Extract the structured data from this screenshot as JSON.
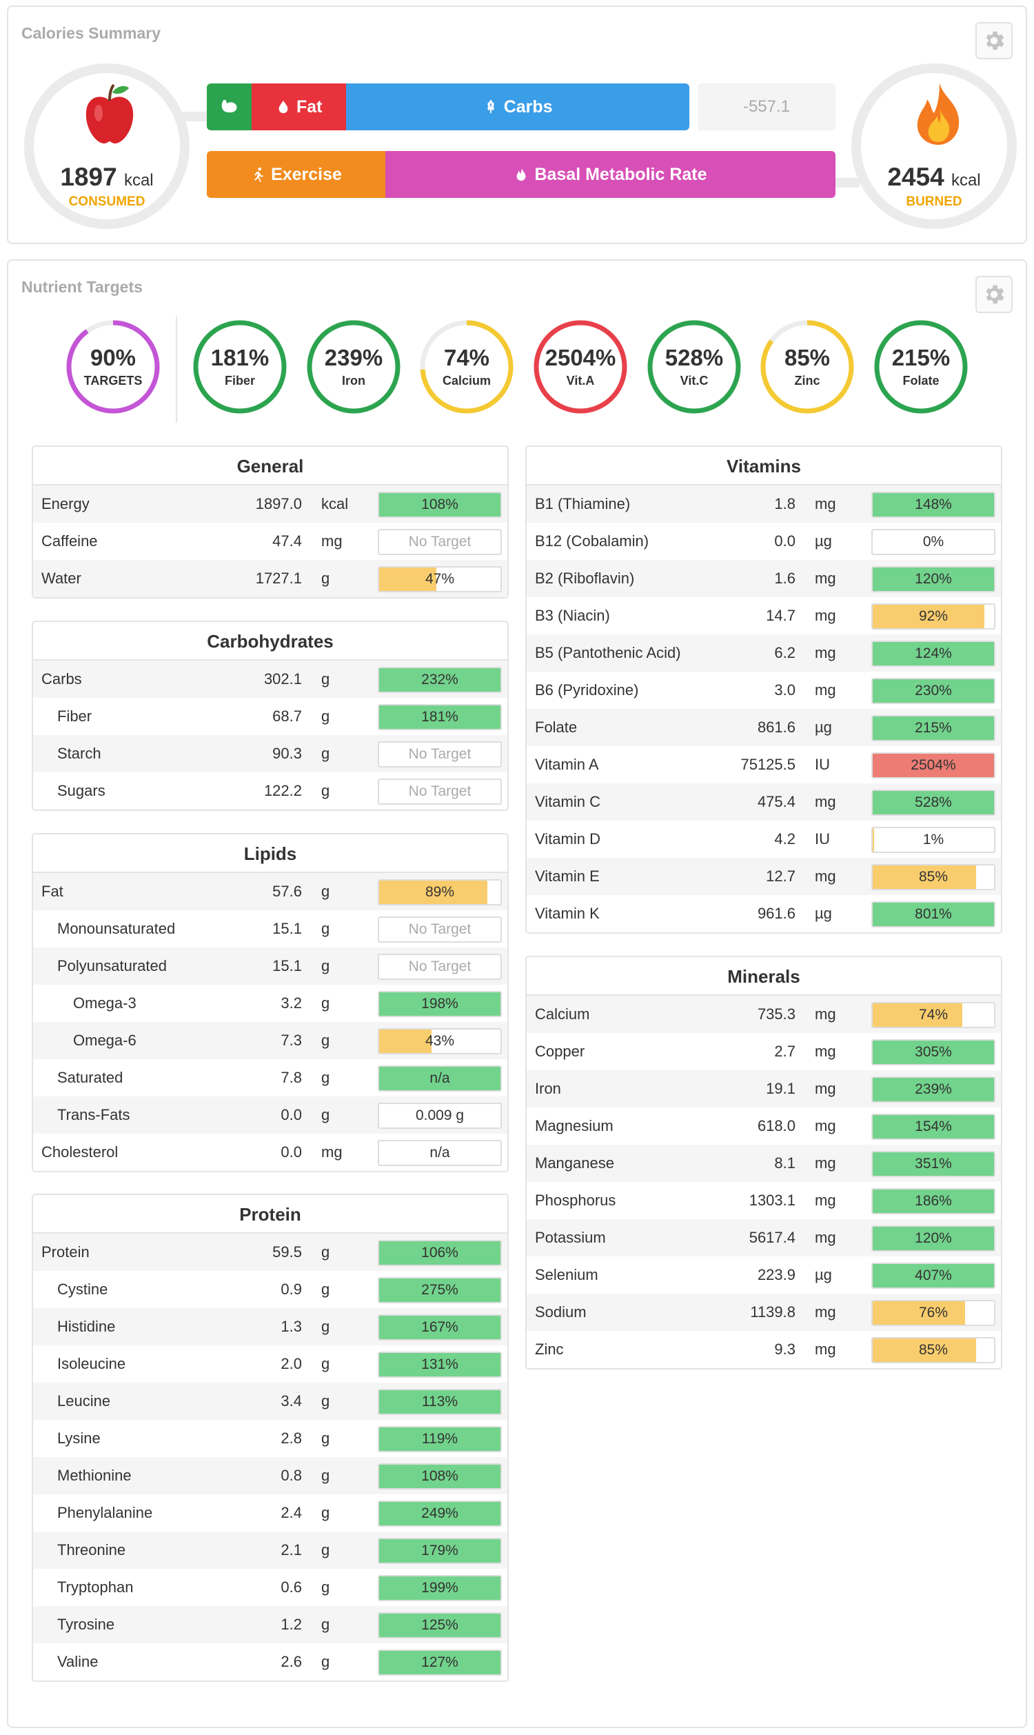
{
  "calories": {
    "title": "Calories Summary",
    "consumed_value": "1897",
    "consumed_unit": "kcal",
    "consumed_label": "CONSUMED",
    "burned_value": "2454",
    "burned_unit": "kcal",
    "burned_label": "BURNED",
    "net": "-557.1",
    "bar1": [
      {
        "label": "",
        "icon": "protein-flex-icon",
        "color": "#2ca44f",
        "pct": 0.093
      },
      {
        "label": "Fat",
        "icon": "droplet-icon",
        "color": "#e8323c",
        "pct": 0.196
      },
      {
        "label": "Carbs",
        "icon": "wheat-icon",
        "color": "#3a9de8",
        "pct": 0.711
      }
    ],
    "bar2": [
      {
        "label": "Exercise",
        "icon": "running-icon",
        "color": "#f28c1e",
        "pct": 0.284
      },
      {
        "label": "Basal Metabolic Rate",
        "icon": "flame-icon",
        "color": "#d84fb7",
        "pct": 0.716
      }
    ]
  },
  "targets": {
    "title": "Nutrient Targets",
    "rings": [
      {
        "value": "90%",
        "label": "TARGETS",
        "color": "#c355d6",
        "pct": 0.9
      },
      {
        "value": "181%",
        "label": "Fiber",
        "color": "#2ca44f",
        "pct": 1
      },
      {
        "value": "239%",
        "label": "Iron",
        "color": "#2ca44f",
        "pct": 1
      },
      {
        "value": "74%",
        "label": "Calcium",
        "color": "#f4c932",
        "pct": 0.74
      },
      {
        "value": "2504%",
        "label": "Vit.A",
        "color": "#e8404a",
        "pct": 1
      },
      {
        "value": "528%",
        "label": "Vit.C",
        "color": "#2ca44f",
        "pct": 1
      },
      {
        "value": "85%",
        "label": "Zinc",
        "color": "#f4c932",
        "pct": 0.85
      },
      {
        "value": "215%",
        "label": "Folate",
        "color": "#2ca44f",
        "pct": 1
      }
    ]
  },
  "colors": {
    "green": "#72d38c",
    "yellow": "#f9cd6d",
    "red": "#ec7c74"
  },
  "sections": {
    "general": {
      "title": "General",
      "rows": [
        {
          "name": "Energy",
          "value": "1897.0",
          "unit": "kcal",
          "text": "108%",
          "pct": 1,
          "color": "green"
        },
        {
          "name": "Caffeine",
          "value": "47.4",
          "unit": "mg",
          "text": "No Target",
          "pct": 0,
          "color": "none"
        },
        {
          "name": "Water",
          "value": "1727.1",
          "unit": "g",
          "text": "47%",
          "pct": 0.47,
          "color": "yellow"
        }
      ]
    },
    "carbohydrates": {
      "title": "Carbohydrates",
      "rows": [
        {
          "name": "Carbs",
          "value": "302.1",
          "unit": "g",
          "text": "232%",
          "pct": 1,
          "color": "green"
        },
        {
          "name": "Fiber",
          "value": "68.7",
          "unit": "g",
          "text": "181%",
          "pct": 1,
          "color": "green",
          "indent": 1
        },
        {
          "name": "Starch",
          "value": "90.3",
          "unit": "g",
          "text": "No Target",
          "pct": 0,
          "color": "none",
          "indent": 1
        },
        {
          "name": "Sugars",
          "value": "122.2",
          "unit": "g",
          "text": "No Target",
          "pct": 0,
          "color": "none",
          "indent": 1
        }
      ]
    },
    "lipids": {
      "title": "Lipids",
      "rows": [
        {
          "name": "Fat",
          "value": "57.6",
          "unit": "g",
          "text": "89%",
          "pct": 0.89,
          "color": "yellow"
        },
        {
          "name": "Monounsaturated",
          "value": "15.1",
          "unit": "g",
          "text": "No Target",
          "pct": 0,
          "color": "none",
          "indent": 1
        },
        {
          "name": "Polyunsaturated",
          "value": "15.1",
          "unit": "g",
          "text": "No Target",
          "pct": 0,
          "color": "none",
          "indent": 1
        },
        {
          "name": "Omega-3",
          "value": "3.2",
          "unit": "g",
          "text": "198%",
          "pct": 1,
          "color": "green",
          "indent": 2
        },
        {
          "name": "Omega-6",
          "value": "7.3",
          "unit": "g",
          "text": "43%",
          "pct": 0.43,
          "color": "yellow",
          "indent": 2
        },
        {
          "name": "Saturated",
          "value": "7.8",
          "unit": "g",
          "text": "n/a",
          "pct": 1,
          "color": "green",
          "indent": 1
        },
        {
          "name": "Trans-Fats",
          "value": "0.0",
          "unit": "g",
          "text": "0.009 g",
          "pct": 0,
          "color": "none",
          "indent": 1,
          "dark": true
        },
        {
          "name": "Cholesterol",
          "value": "0.0",
          "unit": "mg",
          "text": "n/a",
          "pct": 0,
          "color": "none",
          "dark": true
        }
      ]
    },
    "protein": {
      "title": "Protein",
      "rows": [
        {
          "name": "Protein",
          "value": "59.5",
          "unit": "g",
          "text": "106%",
          "pct": 1,
          "color": "green"
        },
        {
          "name": "Cystine",
          "value": "0.9",
          "unit": "g",
          "text": "275%",
          "pct": 1,
          "color": "green",
          "indent": 1
        },
        {
          "name": "Histidine",
          "value": "1.3",
          "unit": "g",
          "text": "167%",
          "pct": 1,
          "color": "green",
          "indent": 1
        },
        {
          "name": "Isoleucine",
          "value": "2.0",
          "unit": "g",
          "text": "131%",
          "pct": 1,
          "color": "green",
          "indent": 1
        },
        {
          "name": "Leucine",
          "value": "3.4",
          "unit": "g",
          "text": "113%",
          "pct": 1,
          "color": "green",
          "indent": 1
        },
        {
          "name": "Lysine",
          "value": "2.8",
          "unit": "g",
          "text": "119%",
          "pct": 1,
          "color": "green",
          "indent": 1
        },
        {
          "name": "Methionine",
          "value": "0.8",
          "unit": "g",
          "text": "108%",
          "pct": 1,
          "color": "green",
          "indent": 1
        },
        {
          "name": "Phenylalanine",
          "value": "2.4",
          "unit": "g",
          "text": "249%",
          "pct": 1,
          "color": "green",
          "indent": 1
        },
        {
          "name": "Threonine",
          "value": "2.1",
          "unit": "g",
          "text": "179%",
          "pct": 1,
          "color": "green",
          "indent": 1
        },
        {
          "name": "Tryptophan",
          "value": "0.6",
          "unit": "g",
          "text": "199%",
          "pct": 1,
          "color": "green",
          "indent": 1
        },
        {
          "name": "Tyrosine",
          "value": "1.2",
          "unit": "g",
          "text": "125%",
          "pct": 1,
          "color": "green",
          "indent": 1
        },
        {
          "name": "Valine",
          "value": "2.6",
          "unit": "g",
          "text": "127%",
          "pct": 1,
          "color": "green",
          "indent": 1
        }
      ]
    },
    "vitamins": {
      "title": "Vitamins",
      "rows": [
        {
          "name": "B1 (Thiamine)",
          "value": "1.8",
          "unit": "mg",
          "text": "148%",
          "pct": 1,
          "color": "green"
        },
        {
          "name": "B12 (Cobalamin)",
          "value": "0.0",
          "unit": "µg",
          "text": "0%",
          "pct": 0,
          "color": "none",
          "dark": true
        },
        {
          "name": "B2 (Riboflavin)",
          "value": "1.6",
          "unit": "mg",
          "text": "120%",
          "pct": 1,
          "color": "green"
        },
        {
          "name": "B3 (Niacin)",
          "value": "14.7",
          "unit": "mg",
          "text": "92%",
          "pct": 0.92,
          "color": "yellow"
        },
        {
          "name": "B5 (Pantothenic Acid)",
          "value": "6.2",
          "unit": "mg",
          "text": "124%",
          "pct": 1,
          "color": "green"
        },
        {
          "name": "B6 (Pyridoxine)",
          "value": "3.0",
          "unit": "mg",
          "text": "230%",
          "pct": 1,
          "color": "green"
        },
        {
          "name": "Folate",
          "value": "861.6",
          "unit": "µg",
          "text": "215%",
          "pct": 1,
          "color": "green"
        },
        {
          "name": "Vitamin A",
          "value": "75125.5",
          "unit": "IU",
          "text": "2504%",
          "pct": 1,
          "color": "red"
        },
        {
          "name": "Vitamin C",
          "value": "475.4",
          "unit": "mg",
          "text": "528%",
          "pct": 1,
          "color": "green"
        },
        {
          "name": "Vitamin D",
          "value": "4.2",
          "unit": "IU",
          "text": "1%",
          "pct": 0.01,
          "color": "yellow"
        },
        {
          "name": "Vitamin E",
          "value": "12.7",
          "unit": "mg",
          "text": "85%",
          "pct": 0.85,
          "color": "yellow"
        },
        {
          "name": "Vitamin K",
          "value": "961.6",
          "unit": "µg",
          "text": "801%",
          "pct": 1,
          "color": "green"
        }
      ]
    },
    "minerals": {
      "title": "Minerals",
      "rows": [
        {
          "name": "Calcium",
          "value": "735.3",
          "unit": "mg",
          "text": "74%",
          "pct": 0.74,
          "color": "yellow"
        },
        {
          "name": "Copper",
          "value": "2.7",
          "unit": "mg",
          "text": "305%",
          "pct": 1,
          "color": "green"
        },
        {
          "name": "Iron",
          "value": "19.1",
          "unit": "mg",
          "text": "239%",
          "pct": 1,
          "color": "green"
        },
        {
          "name": "Magnesium",
          "value": "618.0",
          "unit": "mg",
          "text": "154%",
          "pct": 1,
          "color": "green"
        },
        {
          "name": "Manganese",
          "value": "8.1",
          "unit": "mg",
          "text": "351%",
          "pct": 1,
          "color": "green"
        },
        {
          "name": "Phosphorus",
          "value": "1303.1",
          "unit": "mg",
          "text": "186%",
          "pct": 1,
          "color": "green"
        },
        {
          "name": "Potassium",
          "value": "5617.4",
          "unit": "mg",
          "text": "120%",
          "pct": 1,
          "color": "green"
        },
        {
          "name": "Selenium",
          "value": "223.9",
          "unit": "µg",
          "text": "407%",
          "pct": 1,
          "color": "green"
        },
        {
          "name": "Sodium",
          "value": "1139.8",
          "unit": "mg",
          "text": "76%",
          "pct": 0.76,
          "color": "yellow"
        },
        {
          "name": "Zinc",
          "value": "9.3",
          "unit": "mg",
          "text": "85%",
          "pct": 0.85,
          "color": "yellow"
        }
      ]
    }
  }
}
